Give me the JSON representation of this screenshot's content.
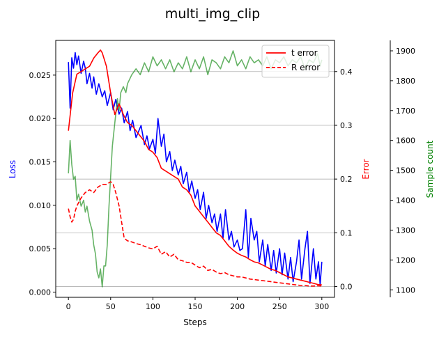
{
  "chart_data": {
    "type": "line",
    "title": "multi_img_clip",
    "xlabel": "Steps",
    "x_ticks": [
      0,
      50,
      100,
      150,
      200,
      250,
      300
    ],
    "xlim": [
      -15,
      315
    ],
    "axes": {
      "loss": {
        "label": "Loss",
        "color": "#0000ff",
        "ylim": [
          -0.0006,
          0.029
        ],
        "ticks": [
          0.0,
          0.005,
          0.01,
          0.015,
          0.02,
          0.025
        ],
        "tick_labels": [
          "0.000",
          "0.005",
          "0.010",
          "0.015",
          "0.020",
          "0.025"
        ]
      },
      "error": {
        "label": "Error",
        "color": "#ff0000",
        "ylim": [
          -0.02,
          0.458
        ],
        "ticks": [
          0.0,
          0.1,
          0.2,
          0.3,
          0.4
        ],
        "tick_labels": [
          "0.0",
          "0.1",
          "0.2",
          "0.3",
          "0.4"
        ],
        "grid": true
      },
      "sample_count": {
        "label": "Sample count",
        "color": "#008000",
        "ylim": [
          1075,
          1935
        ],
        "ticks": [
          1100,
          1200,
          1300,
          1400,
          1500,
          1600,
          1700,
          1800,
          1900
        ],
        "tick_labels": [
          "1100",
          "1200",
          "1300",
          "1400",
          "1500",
          "1600",
          "1700",
          "1800",
          "1900"
        ]
      }
    },
    "legend": {
      "placement": "top-right",
      "entries": [
        {
          "label": "t error",
          "color": "#ff0000",
          "style": "solid"
        },
        {
          "label": "R error",
          "color": "#ff0000",
          "style": "dashed"
        }
      ]
    },
    "series": [
      {
        "axis": "loss",
        "color": "#0000ff",
        "style": "solid",
        "x": [
          0,
          2,
          4,
          6,
          8,
          10,
          12,
          15,
          18,
          20,
          22,
          25,
          28,
          30,
          33,
          36,
          40,
          43,
          46,
          50,
          53,
          56,
          60,
          63,
          66,
          70,
          73,
          76,
          80,
          83,
          86,
          90,
          93,
          96,
          100,
          103,
          106,
          110,
          113,
          116,
          120,
          123,
          126,
          130,
          133,
          136,
          140,
          143,
          146,
          150,
          153,
          156,
          160,
          163,
          166,
          170,
          173,
          176,
          180,
          183,
          186,
          190,
          193,
          196,
          200,
          203,
          206,
          210,
          213,
          216,
          220,
          223,
          226,
          230,
          233,
          236,
          240,
          243,
          246,
          250,
          253,
          256,
          260,
          263,
          266,
          270,
          273,
          276,
          280,
          283,
          286,
          290,
          293,
          296,
          298,
          300
        ],
        "y": [
          0.0265,
          0.0212,
          0.027,
          0.0258,
          0.0276,
          0.0262,
          0.0272,
          0.0252,
          0.0266,
          0.0258,
          0.024,
          0.0252,
          0.0235,
          0.0248,
          0.0228,
          0.024,
          0.0225,
          0.0232,
          0.0215,
          0.023,
          0.021,
          0.0222,
          0.0205,
          0.0212,
          0.0195,
          0.0208,
          0.0186,
          0.0198,
          0.0178,
          0.0185,
          0.0192,
          0.017,
          0.018,
          0.0165,
          0.0176,
          0.016,
          0.02,
          0.0168,
          0.0182,
          0.015,
          0.0162,
          0.014,
          0.0152,
          0.0135,
          0.0145,
          0.0125,
          0.0138,
          0.0115,
          0.0128,
          0.0108,
          0.0118,
          0.0095,
          0.0115,
          0.0085,
          0.01,
          0.008,
          0.009,
          0.007,
          0.009,
          0.0062,
          0.0095,
          0.006,
          0.007,
          0.0052,
          0.006,
          0.0048,
          0.005,
          0.0095,
          0.004,
          0.0085,
          0.006,
          0.007,
          0.0035,
          0.006,
          0.003,
          0.0055,
          0.0025,
          0.0048,
          0.0022,
          0.005,
          0.002,
          0.0045,
          0.0015,
          0.004,
          0.0012,
          0.0035,
          0.006,
          0.0015,
          0.005,
          0.007,
          0.001,
          0.005,
          0.0015,
          0.0035,
          0.0008,
          0.0035
        ]
      },
      {
        "axis": "sample_count",
        "color": "#008000",
        "opacity": 0.6,
        "style": "solid",
        "x": [
          0,
          2,
          4,
          6,
          8,
          10,
          12,
          15,
          18,
          20,
          22,
          25,
          28,
          30,
          32,
          34,
          36,
          38,
          40,
          42,
          44,
          46,
          48,
          50,
          52,
          55,
          58,
          60,
          62,
          65,
          68,
          70,
          75,
          80,
          85,
          90,
          95,
          100,
          105,
          110,
          115,
          120,
          125,
          130,
          135,
          140,
          145,
          150,
          155,
          160,
          165,
          170,
          175,
          180,
          185,
          190,
          195,
          200,
          205,
          210,
          215,
          220,
          225,
          230,
          235,
          240,
          245,
          250,
          255,
          260,
          265,
          270,
          275,
          280,
          285,
          290,
          295,
          298,
          300
        ],
        "y": [
          1490,
          1600,
          1520,
          1470,
          1480,
          1400,
          1420,
          1380,
          1400,
          1360,
          1380,
          1330,
          1300,
          1250,
          1220,
          1160,
          1140,
          1170,
          1110,
          1180,
          1180,
          1250,
          1380,
          1480,
          1580,
          1660,
          1740,
          1700,
          1760,
          1780,
          1760,
          1790,
          1820,
          1840,
          1820,
          1860,
          1830,
          1880,
          1850,
          1870,
          1840,
          1870,
          1830,
          1860,
          1840,
          1880,
          1830,
          1870,
          1840,
          1880,
          1820,
          1870,
          1860,
          1840,
          1880,
          1860,
          1900,
          1850,
          1870,
          1840,
          1880,
          1860,
          1870,
          1850,
          1880,
          1840,
          1870,
          1860,
          1880,
          1850,
          1870,
          1860,
          1880,
          1840,
          1870,
          1860,
          1890,
          1850,
          1870
        ]
      },
      {
        "axis": "error",
        "color": "#ff0000",
        "style": "solid",
        "name": "t error",
        "x": [
          0,
          5,
          10,
          15,
          20,
          25,
          30,
          35,
          38,
          40,
          45,
          50,
          55,
          60,
          65,
          70,
          75,
          80,
          85,
          90,
          95,
          100,
          105,
          110,
          115,
          120,
          125,
          130,
          135,
          140,
          145,
          150,
          155,
          160,
          165,
          170,
          175,
          180,
          185,
          190,
          195,
          200,
          205,
          210,
          215,
          220,
          225,
          230,
          235,
          240,
          245,
          250,
          255,
          260,
          265,
          270,
          275,
          280,
          285,
          290,
          295,
          300
        ],
        "y": [
          0.29,
          0.36,
          0.395,
          0.4,
          0.405,
          0.41,
          0.425,
          0.435,
          0.44,
          0.435,
          0.41,
          0.36,
          0.32,
          0.34,
          0.32,
          0.305,
          0.3,
          0.29,
          0.28,
          0.27,
          0.255,
          0.25,
          0.24,
          0.22,
          0.215,
          0.21,
          0.205,
          0.2,
          0.185,
          0.18,
          0.17,
          0.15,
          0.14,
          0.13,
          0.12,
          0.11,
          0.1,
          0.095,
          0.085,
          0.075,
          0.068,
          0.062,
          0.058,
          0.055,
          0.05,
          0.046,
          0.044,
          0.04,
          0.036,
          0.032,
          0.03,
          0.026,
          0.022,
          0.018,
          0.016,
          0.014,
          0.012,
          0.01,
          0.008,
          0.006,
          0.004,
          0.003
        ]
      },
      {
        "axis": "error",
        "color": "#ff0000",
        "style": "dashed",
        "name": "R error",
        "x": [
          0,
          2,
          4,
          6,
          8,
          10,
          15,
          20,
          25,
          30,
          35,
          40,
          45,
          50,
          53,
          56,
          60,
          63,
          66,
          70,
          75,
          80,
          85,
          90,
          95,
          100,
          105,
          110,
          115,
          120,
          125,
          130,
          135,
          140,
          145,
          150,
          155,
          160,
          165,
          170,
          175,
          180,
          185,
          190,
          195,
          200,
          205,
          210,
          215,
          220,
          225,
          230,
          235,
          240,
          245,
          250,
          255,
          260,
          265,
          270,
          275,
          280,
          285,
          290,
          295,
          300
        ],
        "y": [
          0.145,
          0.13,
          0.12,
          0.125,
          0.14,
          0.15,
          0.165,
          0.175,
          0.18,
          0.175,
          0.185,
          0.19,
          0.19,
          0.195,
          0.19,
          0.175,
          0.15,
          0.12,
          0.09,
          0.085,
          0.083,
          0.08,
          0.078,
          0.075,
          0.072,
          0.07,
          0.075,
          0.06,
          0.065,
          0.055,
          0.06,
          0.05,
          0.048,
          0.045,
          0.045,
          0.04,
          0.035,
          0.038,
          0.03,
          0.032,
          0.027,
          0.024,
          0.026,
          0.022,
          0.02,
          0.018,
          0.018,
          0.016,
          0.014,
          0.013,
          0.012,
          0.011,
          0.01,
          0.009,
          0.008,
          0.007,
          0.006,
          0.005,
          0.004,
          0.003,
          0.002,
          0.002,
          0.001,
          0.001,
          0.0015,
          0.001
        ]
      }
    ]
  }
}
